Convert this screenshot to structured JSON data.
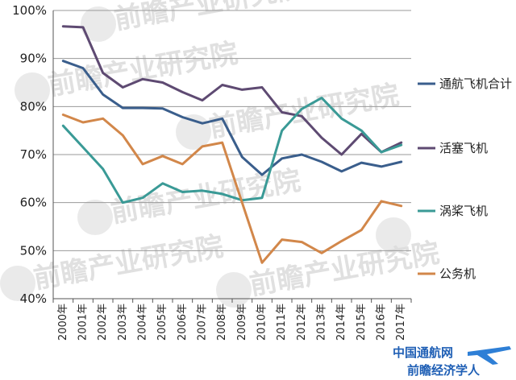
{
  "chart_data": {
    "type": "line",
    "title": "",
    "xlabel": "",
    "ylabel": "",
    "x": [
      "2000年",
      "2001年",
      "2002年",
      "2003年",
      "2004年",
      "2005年",
      "2006年",
      "2007年",
      "2008年",
      "2009年",
      "2010年",
      "2011年",
      "2012年",
      "2013年",
      "2014年",
      "2015年",
      "2016年",
      "2017年"
    ],
    "ylim": [
      40,
      100
    ],
    "yticks": [
      40,
      50,
      60,
      70,
      80,
      90,
      100
    ],
    "ytick_labels": [
      "40%",
      "50%",
      "60%",
      "70%",
      "80%",
      "90%",
      "100%"
    ],
    "grid": true,
    "legend_position": "right",
    "series": [
      {
        "name": "通航飞机合计",
        "color": "#3a5e8c",
        "values": [
          89.5,
          88.0,
          82.5,
          79.7,
          79.7,
          79.6,
          77.8,
          76.5,
          77.5,
          69.5,
          65.8,
          69.2,
          70.0,
          68.5,
          66.5,
          68.3,
          67.5,
          68.5
        ]
      },
      {
        "name": "活塞飞机",
        "color": "#5e4a72",
        "values": [
          96.7,
          96.5,
          87.0,
          84.0,
          85.7,
          85.0,
          83.0,
          81.3,
          84.5,
          83.5,
          84.0,
          78.8,
          78.0,
          73.5,
          70.0,
          74.3,
          70.5,
          72.5
        ]
      },
      {
        "name": "涡桨飞机",
        "color": "#3a9a96",
        "values": [
          76.0,
          71.5,
          67.0,
          60.0,
          61.0,
          64.0,
          62.2,
          62.5,
          61.8,
          60.5,
          61.0,
          75.0,
          79.5,
          81.8,
          77.5,
          75.0,
          70.5,
          72.0
        ]
      },
      {
        "name": "公务机",
        "color": "#d2874a",
        "values": [
          78.3,
          76.7,
          77.5,
          74.0,
          68.0,
          69.7,
          68.0,
          71.7,
          72.5,
          60.0,
          47.5,
          52.3,
          51.8,
          49.5,
          52.0,
          54.3,
          60.3,
          59.3
        ]
      }
    ]
  },
  "watermark": {
    "text": "前瞻产业研究院",
    "brand_line1": "中国通航网",
    "brand_line2": "前瞻经济学人"
  }
}
